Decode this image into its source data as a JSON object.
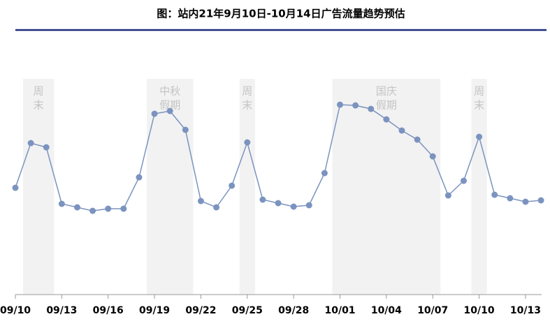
{
  "chart_data": {
    "type": "line",
    "title": "图：站内21年9月10日-10月14日广告流量趋势预估",
    "categories": [
      "09/10",
      null,
      null,
      "09/13",
      null,
      null,
      "09/16",
      null,
      null,
      "09/19",
      null,
      null,
      "09/22",
      null,
      null,
      "09/25",
      null,
      null,
      "09/28",
      null,
      null,
      "10/01",
      null,
      null,
      "10/04",
      null,
      null,
      "10/07",
      null,
      null,
      "10/10",
      null,
      null,
      "10/13",
      null
    ],
    "series": [
      {
        "color": "#7b93bf",
        "values": [
          153,
          217,
          211,
          130,
          125,
          120,
          123,
          123,
          168,
          259,
          263,
          236,
          134,
          125,
          156,
          218,
          136,
          131,
          126,
          128,
          174,
          272,
          271,
          266,
          251,
          235,
          222,
          198,
          142,
          163,
          226,
          143,
          138,
          133,
          135
        ]
      }
    ],
    "ylim": [
      0,
      330
    ],
    "shaded_periods": [
      {
        "lines": [
          "周",
          "末"
        ],
        "from": 1,
        "to": 2
      },
      {
        "lines": [
          "中秋",
          "假期"
        ],
        "from": 9,
        "to": 11
      },
      {
        "lines": [
          "周",
          "末"
        ],
        "from": 15,
        "to": 15
      },
      {
        "lines": [
          "国庆",
          "假期"
        ],
        "from": 21,
        "to": 27
      },
      {
        "lines": [
          "周",
          "末"
        ],
        "from": 30,
        "to": 30
      }
    ],
    "shade_color": "#f2f2f2"
  }
}
